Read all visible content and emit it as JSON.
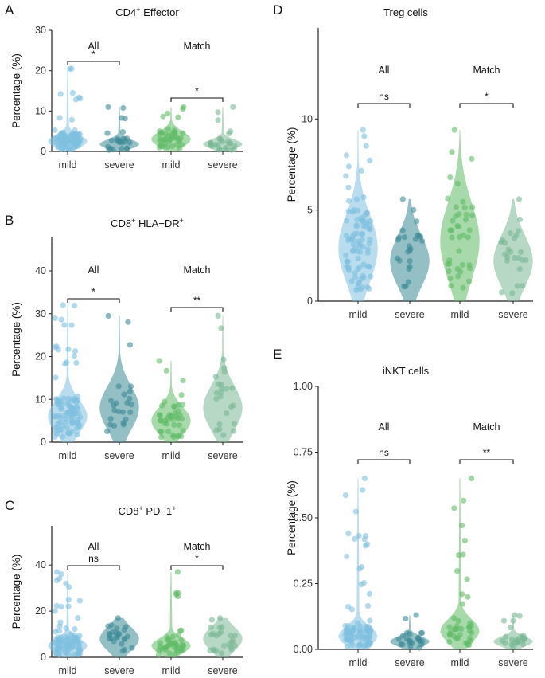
{
  "colors": {
    "mild_all": "#7fc0e0",
    "severe_all": "#3d8a96",
    "mild_match": "#5fba65",
    "severe_match": "#7ab895",
    "axis": "#222222"
  },
  "chart_data": [
    {
      "id": "A",
      "letter": "A",
      "type": "violin",
      "title_base": "CD4",
      "title_sup": "+",
      "title_rest": " Effector",
      "ylabel": "Percentage (%)",
      "ylim": [
        0,
        30
      ],
      "yticks": [
        0,
        10,
        20,
        30
      ],
      "categories": [
        "mild",
        "severe",
        "mild",
        "severe"
      ],
      "groups": [
        "All",
        "Match"
      ],
      "comparisons": [
        {
          "label": "*",
          "group": "All"
        },
        {
          "label": "*",
          "group": "Match"
        }
      ],
      "series": [
        {
          "name": "mild (All)",
          "max": 20.5,
          "median": 2.5,
          "n": 90
        },
        {
          "name": "severe (All)",
          "max": 11.0,
          "median": 1.8,
          "n": 24
        },
        {
          "name": "mild (Match)",
          "max": 11.0,
          "median": 3.0,
          "n": 40
        },
        {
          "name": "severe (Match)",
          "max": 11.0,
          "median": 1.8,
          "n": 24
        }
      ]
    },
    {
      "id": "B",
      "letter": "B",
      "type": "violin",
      "title_base": "CD8",
      "title_sup": "+",
      "title_rest": " HLA−DR",
      "title_sup2": "+",
      "ylabel": "Percentage (%)",
      "ylim": [
        0,
        48
      ],
      "yticks": [
        0,
        10,
        20,
        30,
        40
      ],
      "categories": [
        "mild",
        "severe",
        "mild",
        "severe"
      ],
      "groups": [
        "All",
        "Match"
      ],
      "comparisons": [
        {
          "label": "*",
          "group": "All"
        },
        {
          "label": "**",
          "group": "Match"
        }
      ],
      "series": [
        {
          "name": "mild (All)",
          "max": 32.0,
          "median": 6.0,
          "n": 90
        },
        {
          "name": "severe (All)",
          "max": 29.5,
          "median": 8.0,
          "n": 24
        },
        {
          "name": "mild (Match)",
          "max": 19.0,
          "median": 5.0,
          "n": 40
        },
        {
          "name": "severe (Match)",
          "max": 29.5,
          "median": 8.0,
          "n": 24
        }
      ]
    },
    {
      "id": "C",
      "letter": "C",
      "type": "violin",
      "title_base": "CD8",
      "title_sup": "+",
      "title_rest": " PD−1",
      "title_sup2": "+",
      "ylabel": "Percentage (%)",
      "ylim": [
        0,
        57
      ],
      "yticks": [
        0,
        20,
        40
      ],
      "categories": [
        "mild",
        "severe",
        "mild",
        "severe"
      ],
      "groups": [
        "All",
        "Match"
      ],
      "comparisons": [
        {
          "label": "ns",
          "group": "All"
        },
        {
          "label": "*",
          "group": "Match"
        }
      ],
      "series": [
        {
          "name": "mild (All)",
          "max": 37.0,
          "median": 5.0,
          "n": 90
        },
        {
          "name": "severe (All)",
          "max": 17.0,
          "median": 8.0,
          "n": 24
        },
        {
          "name": "mild (Match)",
          "max": 37.0,
          "median": 5.0,
          "n": 40
        },
        {
          "name": "severe (Match)",
          "max": 17.0,
          "median": 8.0,
          "n": 24
        }
      ]
    },
    {
      "id": "D",
      "letter": "D",
      "type": "violin",
      "title_base": "Treg cells",
      "title_sup": "",
      "title_rest": "",
      "ylabel": "Percentage (%)",
      "ylim": [
        0,
        15
      ],
      "yticks": [
        0,
        5,
        10
      ],
      "categories": [
        "mild",
        "severe",
        "mild",
        "severe"
      ],
      "groups": [
        "All",
        "Match"
      ],
      "comparisons": [
        {
          "label": "ns",
          "group": "All"
        },
        {
          "label": "*",
          "group": "Match"
        }
      ],
      "series": [
        {
          "name": "mild (All)",
          "max": 9.4,
          "median": 2.9,
          "n": 90
        },
        {
          "name": "severe (All)",
          "max": 5.6,
          "median": 2.2,
          "n": 24
        },
        {
          "name": "mild (Match)",
          "max": 9.4,
          "median": 3.3,
          "n": 40
        },
        {
          "name": "severe (Match)",
          "max": 5.6,
          "median": 2.2,
          "n": 24
        }
      ]
    },
    {
      "id": "E",
      "letter": "E",
      "type": "violin",
      "title_base": "iNKT cells",
      "title_sup": "",
      "title_rest": "",
      "ylabel": "Percentage (%)",
      "ylim": [
        0,
        1
      ],
      "yticks": [
        0,
        0.25,
        0.5,
        0.75,
        1
      ],
      "ytick_labels": [
        "0.00",
        "0.25",
        "0.50",
        "0.75",
        "1.00"
      ],
      "categories": [
        "mild",
        "severe",
        "mild",
        "severe"
      ],
      "groups": [
        "All",
        "Match"
      ],
      "comparisons": [
        {
          "label": "ns",
          "group": "All"
        },
        {
          "label": "**",
          "group": "Match"
        }
      ],
      "series": [
        {
          "name": "mild (All)",
          "max": 0.65,
          "median": 0.05,
          "n": 90
        },
        {
          "name": "severe (All)",
          "max": 0.13,
          "median": 0.03,
          "n": 24
        },
        {
          "name": "mild (Match)",
          "max": 0.65,
          "median": 0.07,
          "n": 40
        },
        {
          "name": "severe (Match)",
          "max": 0.13,
          "median": 0.03,
          "n": 24
        }
      ]
    }
  ]
}
